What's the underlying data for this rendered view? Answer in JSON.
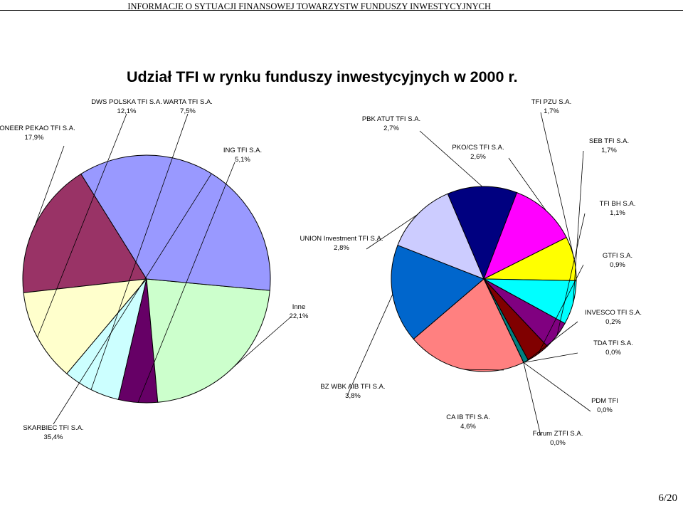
{
  "header": {
    "text": "INFORMACJE O SYTUACJI FINANSOWEJ TOWARZYSTW  FUNDUSZY INWESTYCYJNYCH"
  },
  "page_number": "6/20",
  "chart_data": {
    "type": "pie",
    "title": "Udział TFI w rynku funduszy inwestycyjnych w 2000 r.",
    "slices": [
      {
        "label": "PIONEER PEKAO TFI S.A.",
        "value_label": "17,9%",
        "value": 17.9,
        "color": "#993366"
      },
      {
        "label": "DWS POLSKA TFI S.A.",
        "value_label": "12,1%",
        "value": 12.1,
        "color": "#ffffcc"
      },
      {
        "label": "WARTA TFI S.A.",
        "value_label": "7,5%",
        "value": 7.5,
        "color": "#ccffff"
      },
      {
        "label": "ING TFI S.A.",
        "value_label": "5,1%",
        "value": 5.1,
        "color": "#660066"
      },
      {
        "label": "Inne",
        "value_label": "22,1%",
        "value": 22.1,
        "color": "#ccffcc"
      },
      {
        "label": "SKARBIEC TFI S.A.",
        "value_label": "35,4%",
        "value": 35.4,
        "color": "#9999ff"
      }
    ],
    "inne_breakdown": [
      {
        "label": "PBK ATUT TFI S.A.",
        "value_label": "2,7%",
        "value": 2.7,
        "color": "#000080"
      },
      {
        "label": "PKO/CS TFI S.A.",
        "value_label": "2,6%",
        "value": 2.6,
        "color": "#ff00ff"
      },
      {
        "label": "TFI PZU S.A.",
        "value_label": "1,7%",
        "value": 1.7,
        "color": "#ffff00"
      },
      {
        "label": "SEB TFI S.A.",
        "value_label": "1,7%",
        "value": 1.7,
        "color": "#00ffff"
      },
      {
        "label": "TFI BH S.A.",
        "value_label": "1,1%",
        "value": 1.1,
        "color": "#800080"
      },
      {
        "label": "GTFI S.A.",
        "value_label": "0,9%",
        "value": 0.9,
        "color": "#800000"
      },
      {
        "label": "INVESCO TFI S.A.",
        "value_label": "0,2%",
        "value": 0.2,
        "color": "#008080"
      },
      {
        "label": "TDA TFI S.A.",
        "value_label": "0,0%",
        "value": 0.0,
        "color": "#0000ff"
      },
      {
        "label": "PDM TFI",
        "value_label": "0,0%",
        "value": 0.0,
        "color": "#000000"
      },
      {
        "label": "Forum ZTFI S.A.",
        "value_label": "0,0%",
        "value": 0.0,
        "color": "#cccccc"
      },
      {
        "label": "CA IB TFI S.A.",
        "value_label": "4,6%",
        "value": 4.6,
        "color": "#ff8080"
      },
      {
        "label": "BZ WBK AIB TFI S.A.",
        "value_label": "3,8%",
        "value": 3.8,
        "color": "#0066cc"
      },
      {
        "label": "UNION Investment TFI S.A.",
        "value_label": "2,8%",
        "value": 2.8,
        "color": "#ccccff"
      }
    ]
  }
}
